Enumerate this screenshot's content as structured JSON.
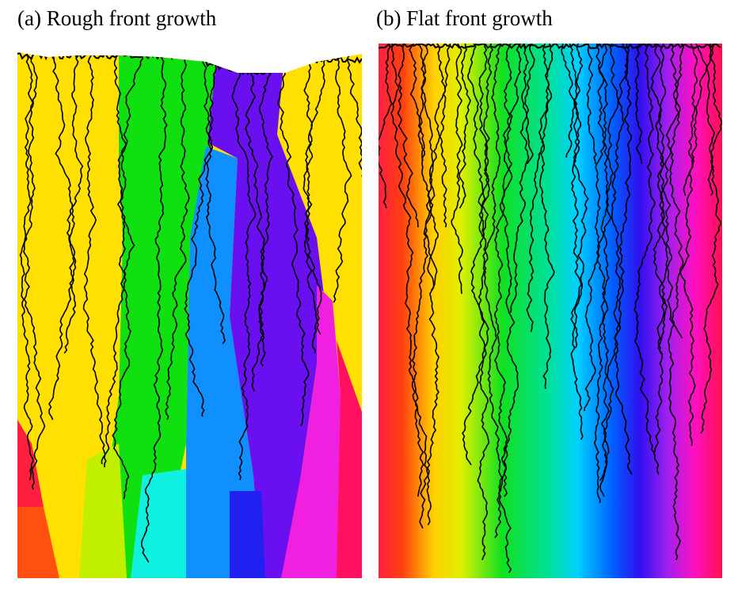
{
  "panels": [
    {
      "label": "(a) Rough front growth"
    },
    {
      "label": "(b) Flat front growth"
    }
  ]
}
